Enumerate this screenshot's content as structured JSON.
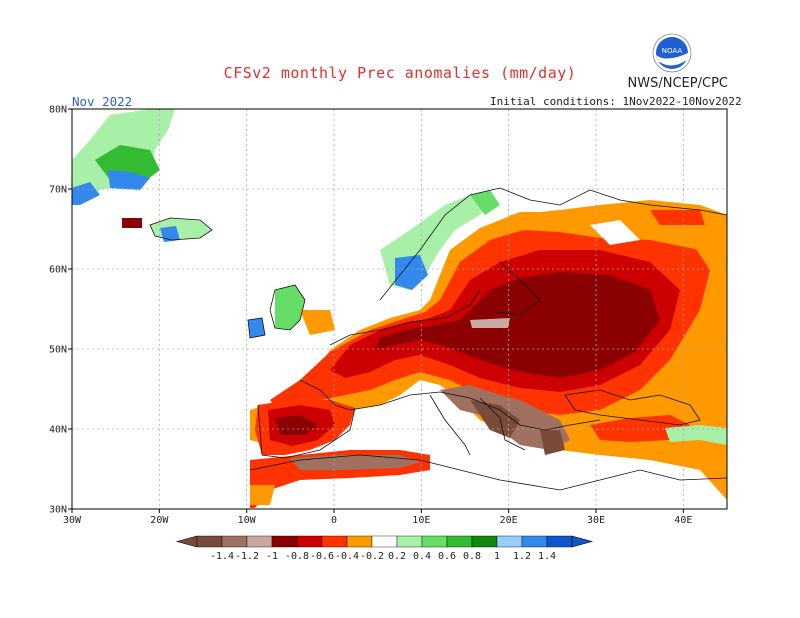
{
  "header": {
    "title": "CFSv2 monthly Prec anomalies (mm/day)",
    "agency": "NWS/NCEP/CPC",
    "month": "Nov 2022",
    "initial_conditions": "Initial conditions: 1Nov2022-10Nov2022"
  },
  "logo": {
    "text": "NOAA"
  },
  "axes": {
    "lat_labels": [
      "80N",
      "70N",
      "60N",
      "50N",
      "40N",
      "30N"
    ],
    "lon_labels": [
      "30W",
      "20W",
      "10W",
      "0",
      "10E",
      "20E",
      "30E",
      "40E"
    ]
  },
  "legend": {
    "labels": [
      "-1.4",
      "-1.2",
      "-1",
      "-0.8",
      "-0.6",
      "-0.4",
      "-0.2",
      "0.2",
      "0.4",
      "0.6",
      "0.8",
      "1",
      "1.2",
      "1.4"
    ],
    "colors": [
      "#7a4a3a",
      "#a07060",
      "#c8a8a0",
      "#8b0000",
      "#cc0000",
      "#ff3300",
      "#ff9900",
      "#ffffff",
      "#a8f0a8",
      "#66dd66",
      "#33bb33",
      "#118811",
      "#99ccff",
      "#3388ee",
      "#1155cc"
    ]
  },
  "colors": {
    "dry_strong": "#8b0000",
    "dry_moderate": "#cc0000",
    "dry_light": "#ff3300",
    "dry_weak": "#ff9900",
    "dry_brown": "#7a4a3a",
    "wet_light": "#a8f0a8",
    "wet_green": "#33bb33",
    "wet_blue": "#3388ee"
  }
}
